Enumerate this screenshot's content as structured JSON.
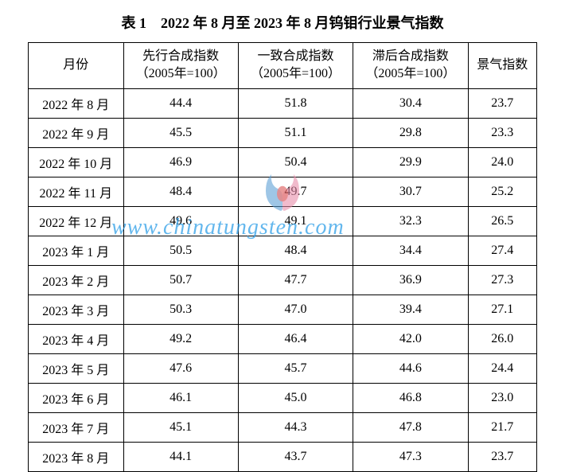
{
  "title": "表 1　2022 年 8 月至 2023 年 8 月钨钼行业景气指数",
  "table": {
    "columns": [
      "月份",
      "先行合成指数\n（2005年=100）",
      "一致合成指数\n（2005年=100）",
      "滞后合成指数\n（2005年=100）",
      "景气指数"
    ],
    "rows": [
      [
        "2022 年 8 月",
        "44.4",
        "51.8",
        "30.4",
        "23.7"
      ],
      [
        "2022 年 9 月",
        "45.5",
        "51.1",
        "29.8",
        "23.3"
      ],
      [
        "2022 年 10 月",
        "46.9",
        "50.4",
        "29.9",
        "24.0"
      ],
      [
        "2022 年 11 月",
        "48.4",
        "49.7",
        "30.7",
        "25.2"
      ],
      [
        "2022 年 12 月",
        "49.6",
        "49.1",
        "32.3",
        "26.5"
      ],
      [
        "2023 年 1 月",
        "50.5",
        "48.4",
        "34.4",
        "27.4"
      ],
      [
        "2023 年 2 月",
        "50.7",
        "47.7",
        "36.9",
        "27.3"
      ],
      [
        "2023 年 3 月",
        "50.3",
        "47.0",
        "39.4",
        "27.1"
      ],
      [
        "2023 年 4 月",
        "49.2",
        "46.4",
        "42.0",
        "26.0"
      ],
      [
        "2023 年 5 月",
        "47.6",
        "45.7",
        "44.6",
        "24.4"
      ],
      [
        "2023 年 6 月",
        "46.1",
        "45.0",
        "46.8",
        "23.0"
      ],
      [
        "2023 年 7 月",
        "45.1",
        "44.3",
        "47.8",
        "21.7"
      ],
      [
        "2023 年 8 月",
        "44.1",
        "43.7",
        "47.3",
        "23.7"
      ]
    ],
    "border_color": "#000000",
    "background_color": "#ffffff",
    "font_size": 16
  },
  "watermark": {
    "text": "www.chinatungsten.com",
    "color": "#309fe8",
    "logo_colors": {
      "blue": "#5a9fd4",
      "pink": "#e88ca8",
      "red": "#d94848"
    }
  }
}
